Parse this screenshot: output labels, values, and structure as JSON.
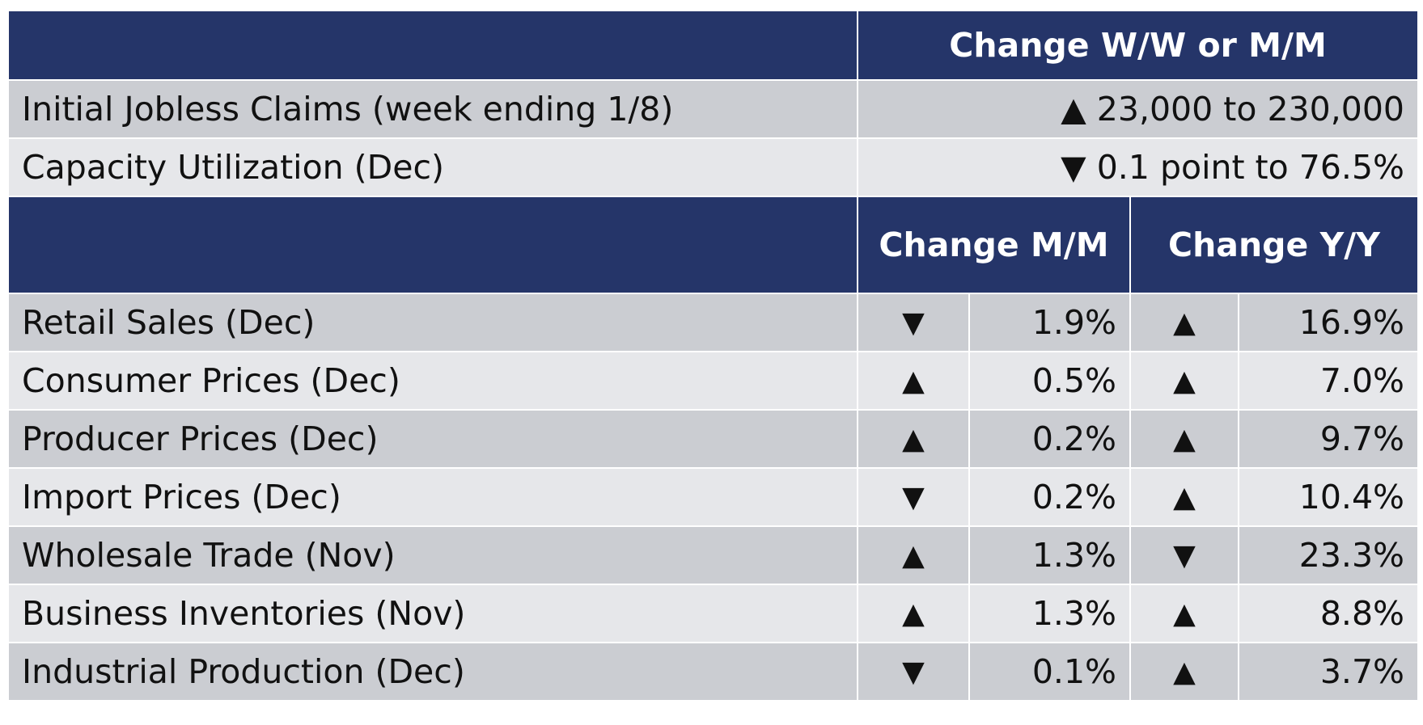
{
  "header_top": {
    "col_left": "",
    "col_right": "Change W/W or M/M"
  },
  "weekly_rows": [
    {
      "label": "Initial Jobless Claims (week ending 1/8)",
      "value": "▲ 23,000 to 230,000"
    },
    {
      "label": "Capacity Utilization (Dec)",
      "value": "▼ 0.1 point to 76.5%"
    }
  ],
  "header_mid": {
    "col_left": "",
    "col_mm": "Change M/M",
    "col_yy": "Change Y/Y"
  },
  "monthly_rows": [
    {
      "label": "Retail Sales (Dec)",
      "mm_dir": "▼",
      "mm_val": "1.9%",
      "yy_dir": "▲",
      "yy_val": "16.9%"
    },
    {
      "label": "Consumer Prices (Dec)",
      "mm_dir": "▲",
      "mm_val": "0.5%",
      "yy_dir": "▲",
      "yy_val": "7.0%"
    },
    {
      "label": "Producer Prices (Dec)",
      "mm_dir": "▲",
      "mm_val": "0.2%",
      "yy_dir": "▲",
      "yy_val": "9.7%"
    },
    {
      "label": "Import Prices (Dec)",
      "mm_dir": "▼",
      "mm_val": "0.2%",
      "yy_dir": "▲",
      "yy_val": "10.4%"
    },
    {
      "label": "Wholesale Trade (Nov)",
      "mm_dir": "▲",
      "mm_val": "1.3%",
      "yy_dir": "▼",
      "yy_val": "23.3%"
    },
    {
      "label": "Business Inventories (Nov)",
      "mm_dir": "▲",
      "mm_val": "1.3%",
      "yy_dir": "▲",
      "yy_val": "8.8%"
    },
    {
      "label": "Industrial Production (Dec)",
      "mm_dir": "▼",
      "mm_val": "0.1%",
      "yy_dir": "▲",
      "yy_val": "3.7%"
    }
  ],
  "colors": {
    "header_bg": "#253569",
    "row_dark": "#cbcdd2",
    "row_light": "#e6e7ea"
  }
}
